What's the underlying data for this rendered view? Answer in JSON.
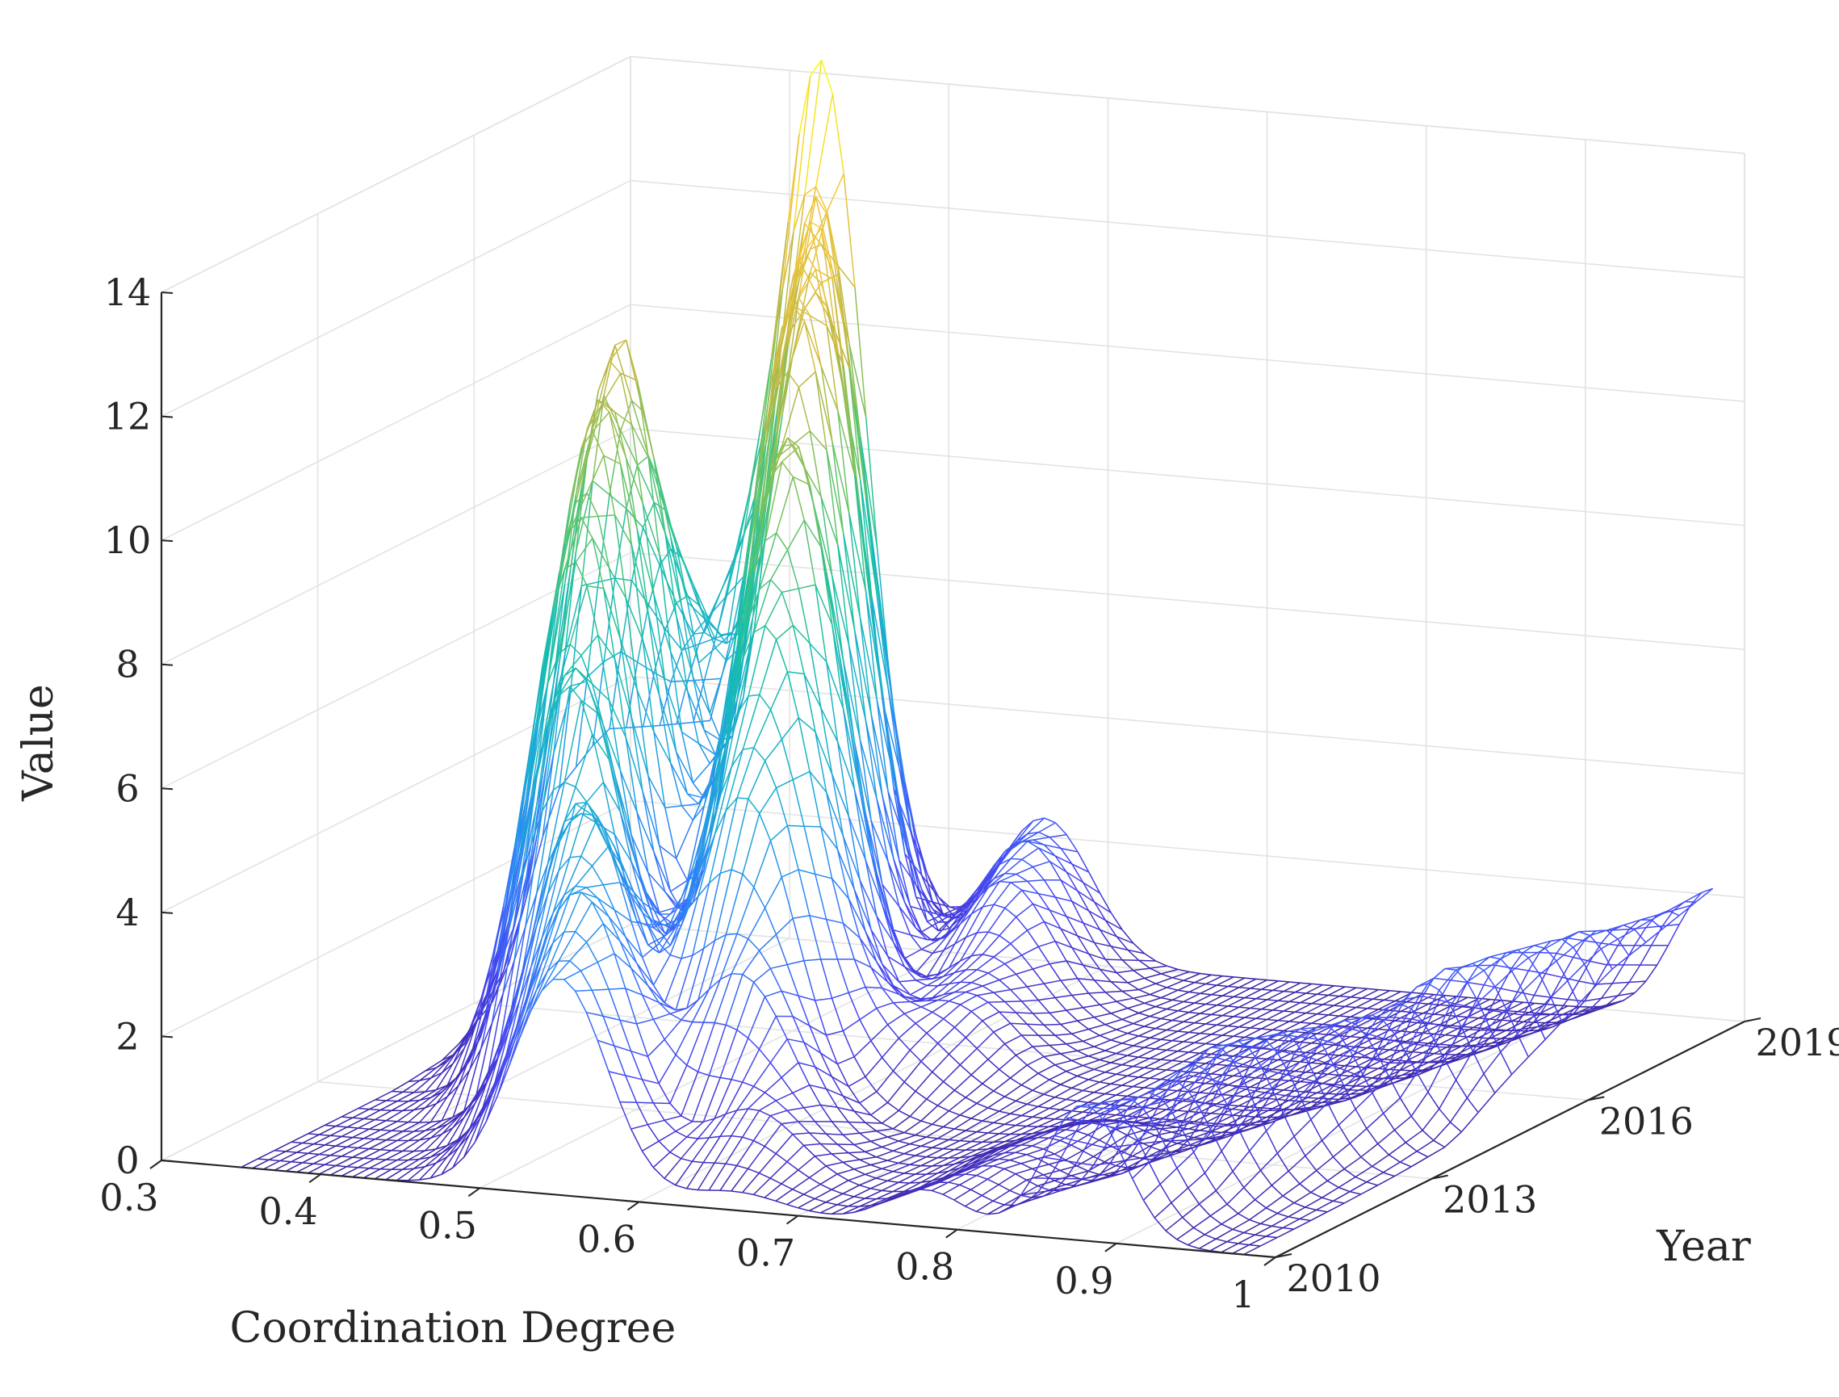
{
  "chart_data": {
    "type": "surface-mesh",
    "title": "",
    "xlabel": "Coordination Degree",
    "ylabel": "Year",
    "zlabel": "Value",
    "xlim": [
      0.3,
      1.0
    ],
    "ylim": [
      2010,
      2019
    ],
    "zlim": [
      0,
      14
    ],
    "x_ticks": [
      "0.3",
      "0.4",
      "0.5",
      "0.6",
      "0.7",
      "0.8",
      "0.9",
      "1"
    ],
    "y_ticks": [
      "2010",
      "2013",
      "2016",
      "2019"
    ],
    "z_ticks": [
      "0",
      "2",
      "4",
      "6",
      "8",
      "10",
      "12",
      "14"
    ],
    "grid": true,
    "colormap": "parula",
    "colormap_colors": [
      "#3e26a8",
      "#4748f3",
      "#2e87f7",
      "#1aafd0",
      "#17c0a7",
      "#66c466",
      "#c5b843",
      "#f6c83a",
      "#f9fb15"
    ],
    "years": [
      2010,
      2011,
      2012,
      2013,
      2014,
      2015,
      2016,
      2017,
      2018,
      2019
    ],
    "peaks": [
      {
        "year": 2010,
        "components": [
          {
            "x": 0.55,
            "h": 3.5,
            "w": 0.03
          },
          {
            "x": 0.66,
            "h": 0.3,
            "w": 0.03
          },
          {
            "x": 0.78,
            "h": 0.6,
            "w": 0.025
          },
          {
            "x": 0.88,
            "h": 2.2,
            "w": 0.025
          }
        ]
      },
      {
        "year": 2011,
        "components": [
          {
            "x": 0.53,
            "h": 4.5,
            "w": 0.032
          },
          {
            "x": 0.64,
            "h": 1.2,
            "w": 0.03
          },
          {
            "x": 0.79,
            "h": 0.6,
            "w": 0.025
          },
          {
            "x": 0.89,
            "h": 2.0,
            "w": 0.025
          }
        ]
      },
      {
        "year": 2012,
        "components": [
          {
            "x": 0.5,
            "h": 5.6,
            "w": 0.03
          },
          {
            "x": 0.6,
            "h": 3.0,
            "w": 0.032
          },
          {
            "x": 0.78,
            "h": 0.5,
            "w": 0.025
          },
          {
            "x": 0.9,
            "h": 2.4,
            "w": 0.025
          }
        ]
      },
      {
        "year": 2013,
        "components": [
          {
            "x": 0.46,
            "h": 7.3,
            "w": 0.028
          },
          {
            "x": 0.57,
            "h": 5.6,
            "w": 0.032
          },
          {
            "x": 0.79,
            "h": 0.5,
            "w": 0.025
          },
          {
            "x": 0.91,
            "h": 2.2,
            "w": 0.025
          }
        ]
      },
      {
        "year": 2014,
        "components": [
          {
            "x": 0.43,
            "h": 9.0,
            "w": 0.027
          },
          {
            "x": 0.55,
            "h": 8.0,
            "w": 0.032
          },
          {
            "x": 0.63,
            "h": 1.0,
            "w": 0.03
          },
          {
            "x": 0.92,
            "h": 2.0,
            "w": 0.025
          }
        ]
      },
      {
        "year": 2015,
        "components": [
          {
            "x": 0.41,
            "h": 10.6,
            "w": 0.026
          },
          {
            "x": 0.53,
            "h": 10.4,
            "w": 0.03
          },
          {
            "x": 0.64,
            "h": 1.3,
            "w": 0.03
          },
          {
            "x": 0.94,
            "h": 2.4,
            "w": 0.025
          }
        ]
      },
      {
        "year": 2016,
        "components": [
          {
            "x": 0.39,
            "h": 11.3,
            "w": 0.026
          },
          {
            "x": 0.5,
            "h": 11.8,
            "w": 0.03
          },
          {
            "x": 0.62,
            "h": 1.4,
            "w": 0.03
          },
          {
            "x": 0.95,
            "h": 2.3,
            "w": 0.025
          }
        ]
      },
      {
        "year": 2017,
        "components": [
          {
            "x": 0.38,
            "h": 8.0,
            "w": 0.026
          },
          {
            "x": 0.48,
            "h": 13.0,
            "w": 0.028
          },
          {
            "x": 0.6,
            "h": 2.2,
            "w": 0.03
          },
          {
            "x": 0.96,
            "h": 2.2,
            "w": 0.025
          }
        ]
      },
      {
        "year": 2018,
        "components": [
          {
            "x": 0.37,
            "h": 5.0,
            "w": 0.026
          },
          {
            "x": 0.45,
            "h": 12.6,
            "w": 0.028
          },
          {
            "x": 0.58,
            "h": 2.4,
            "w": 0.03
          },
          {
            "x": 0.97,
            "h": 2.0,
            "w": 0.025
          }
        ]
      },
      {
        "year": 2019,
        "components": [
          {
            "x": 0.36,
            "h": 3.0,
            "w": 0.026
          },
          {
            "x": 0.42,
            "h": 14.0,
            "w": 0.028
          },
          {
            "x": 0.56,
            "h": 2.3,
            "w": 0.03
          },
          {
            "x": 0.98,
            "h": 2.1,
            "w": 0.025
          }
        ]
      }
    ]
  }
}
